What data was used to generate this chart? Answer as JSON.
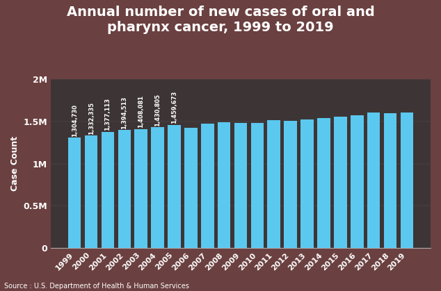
{
  "title": "Annual number of new cases of oral and\npharynx cancer, 1999 to 2019",
  "ylabel": "Case Count",
  "source": "Source : U.S. Department of Health & Human Services",
  "years": [
    1999,
    2000,
    2001,
    2002,
    2003,
    2004,
    2005,
    2006,
    2007,
    2008,
    2009,
    2010,
    2011,
    2012,
    2013,
    2014,
    2015,
    2016,
    2017,
    2018,
    2019
  ],
  "values": [
    1304730,
    1332335,
    1377113,
    1394513,
    1408081,
    1430805,
    1459673,
    1425000,
    1470000,
    1485000,
    1482000,
    1478000,
    1510000,
    1505000,
    1522000,
    1538000,
    1558000,
    1568000,
    1600000,
    1598000,
    1602000
  ],
  "labeled_count": 7,
  "labeled_values_str": [
    "1,304,730",
    "1,332,335",
    "1,377,113",
    "1,394,513",
    "1,408,081",
    "1,430,805",
    "1,459,673"
  ],
  "bar_color": "#5bc8f0",
  "outer_bg_color": "#6b4040",
  "plot_bg_color": "#3d3535",
  "title_color": "white",
  "label_color": "white",
  "tick_color": "white",
  "bar_label_color": "white",
  "ylim": [
    0,
    2000000
  ],
  "yticks": [
    0,
    500000,
    1000000,
    1500000,
    2000000
  ],
  "ytick_labels": [
    "0",
    "0.5M",
    "1M",
    "1.5M",
    "2M"
  ],
  "title_fontsize": 14,
  "ylabel_fontsize": 9,
  "tick_fontsize": 8,
  "source_fontsize": 7
}
